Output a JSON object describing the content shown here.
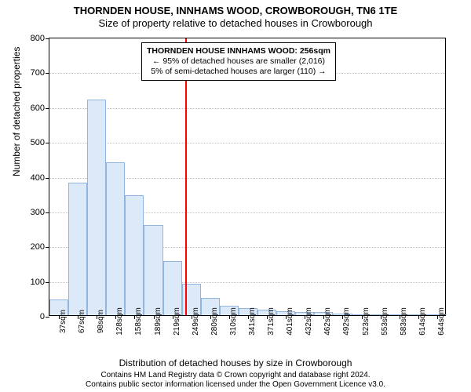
{
  "title": {
    "line1": "THORNDEN HOUSE, INNHAMS WOOD, CROWBOROUGH, TN6 1TE",
    "line2": "Size of property relative to detached houses in Crowborough",
    "fontsize": 13
  },
  "chart": {
    "type": "histogram",
    "ylim": [
      0,
      800
    ],
    "ytick_step": 100,
    "yticks": [
      0,
      100,
      200,
      300,
      400,
      500,
      600,
      700,
      800
    ],
    "xcategories": [
      "37sqm",
      "67sqm",
      "98sqm",
      "128sqm",
      "158sqm",
      "189sqm",
      "219sqm",
      "249sqm",
      "280sqm",
      "310sqm",
      "341sqm",
      "371sqm",
      "401sqm",
      "432sqm",
      "462sqm",
      "492sqm",
      "523sqm",
      "553sqm",
      "583sqm",
      "614sqm",
      "644sqm"
    ],
    "values": [
      45,
      380,
      620,
      440,
      345,
      260,
      155,
      90,
      50,
      28,
      20,
      15,
      12,
      10,
      8,
      5,
      0,
      3,
      2,
      2,
      1
    ],
    "bar_fill": "#dbe9f9",
    "bar_stroke": "#90b6e0",
    "marker_color": "#ff0000",
    "marker_index": 7.2,
    "grid_color": "#c0c0c0",
    "background_color": "#ffffff",
    "bar_width_ratio": 1.0,
    "label_fontsize": 11,
    "tick_fontsize": 10
  },
  "axes": {
    "ylabel": "Number of detached properties",
    "xlabel": "Distribution of detached houses by size in Crowborough"
  },
  "annotation": {
    "line1": "THORNDEN HOUSE INNHAMS WOOD: 256sqm",
    "line2": "← 95% of detached houses are smaller (2,016)",
    "line3": "5% of semi-detached houses are larger (110) →"
  },
  "footer": {
    "line1": "Contains HM Land Registry data © Crown copyright and database right 2024.",
    "line2": "Contains public sector information licensed under the Open Government Licence v3.0."
  }
}
